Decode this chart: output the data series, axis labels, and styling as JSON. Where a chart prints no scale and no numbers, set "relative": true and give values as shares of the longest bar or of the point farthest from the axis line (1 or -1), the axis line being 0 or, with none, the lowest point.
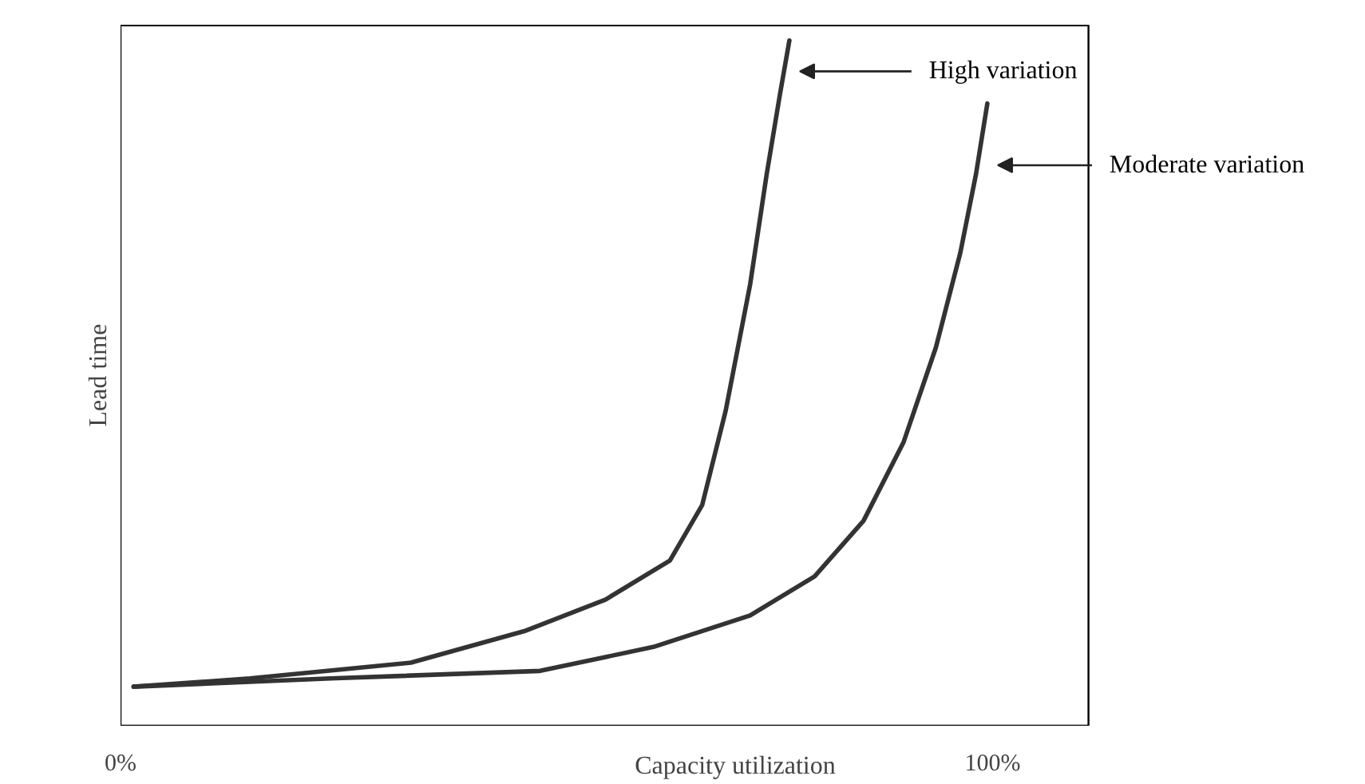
{
  "chart_data": {
    "type": "line",
    "relative": true,
    "xlabel": "Capacity utilization",
    "ylabel": "Lead time",
    "xlim": [
      0,
      111
    ],
    "xticks": [
      {
        "value": 0,
        "label": "0%"
      },
      {
        "value": 100,
        "label": "100%"
      }
    ],
    "grid": false,
    "marker": "none",
    "line_style": "solid",
    "series": [
      {
        "name": "High variation",
        "color": "#333333",
        "x": [
          1.5,
          14.8,
          33.3,
          46.3,
          55.6,
          63.0,
          66.7,
          69.4,
          72.2,
          74.1,
          75.6,
          76.7
        ],
        "values": [
          0.057,
          0.069,
          0.092,
          0.138,
          0.184,
          0.241,
          0.322,
          0.46,
          0.644,
          0.805,
          0.92,
          1.0
        ]
      },
      {
        "name": "Moderate variation",
        "color": "#333333",
        "x": [
          1.5,
          24.1,
          48.1,
          61.1,
          72.2,
          79.6,
          85.2,
          89.8,
          93.5,
          96.3,
          98.1,
          99.4
        ],
        "values": [
          0.057,
          0.069,
          0.08,
          0.115,
          0.161,
          0.218,
          0.299,
          0.414,
          0.552,
          0.69,
          0.805,
          0.908
        ]
      }
    ]
  }
}
